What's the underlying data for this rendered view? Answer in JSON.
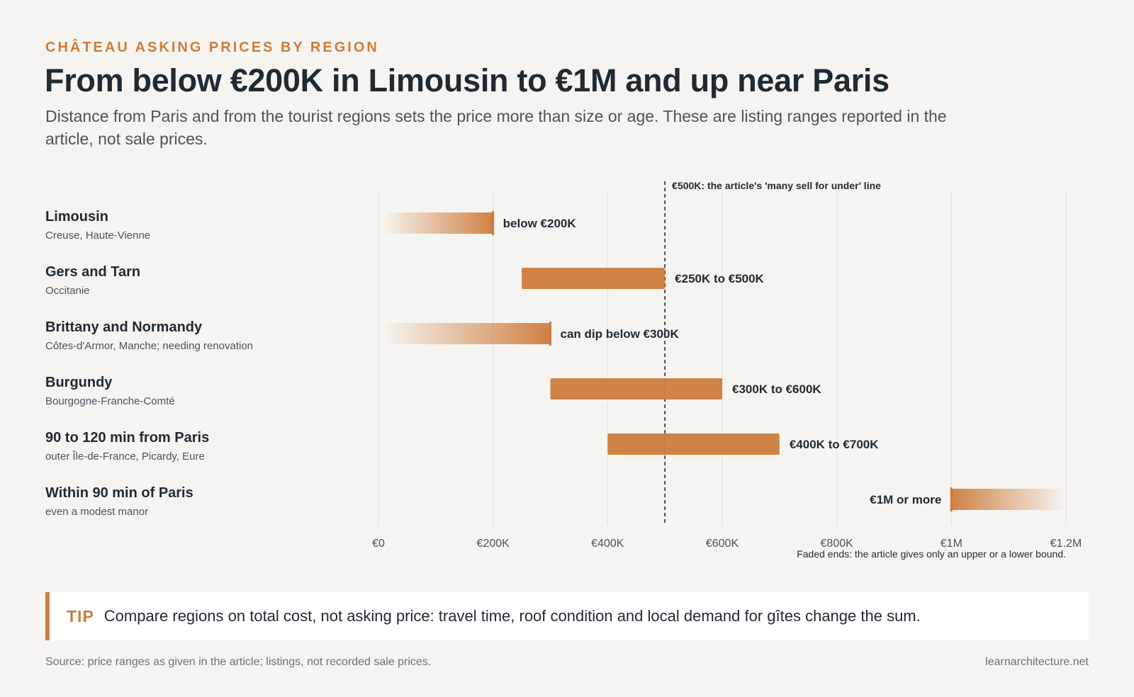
{
  "kicker": "CHÂTEAU ASKING PRICES BY REGION",
  "title": "From below €200K in Limousin to €1M and up near Paris",
  "subtitle": "Distance from Paris and from the tourist regions sets the price more than size or age. These are listing ranges reported in the article, not sale prices.",
  "tip": {
    "label": "TIP",
    "text": "Compare regions on total cost, not asking price: travel time, roof condition and local demand for gîtes change the sum."
  },
  "source": "Source: price ranges as given in the article; listings, not recorded sale prices.",
  "site": "learnarchitecture.net",
  "colors": {
    "bar": "#cd7c3c",
    "grid": "#e2ded8",
    "text": "#1f2a33",
    "muted": "#4a545c"
  },
  "chart_data": {
    "type": "bar",
    "orientation": "horizontal-range",
    "xlim": [
      0,
      1200000
    ],
    "ticks": [
      {
        "value": 0,
        "label": "€0"
      },
      {
        "value": 200000,
        "label": "€200K"
      },
      {
        "value": 400000,
        "label": "€400K"
      },
      {
        "value": 600000,
        "label": "€600K"
      },
      {
        "value": 800000,
        "label": "€800K"
      },
      {
        "value": 1000000,
        "label": "€1M"
      },
      {
        "value": 1200000,
        "label": "€1.2M"
      }
    ],
    "grid": true,
    "reference_line": {
      "value": 500000,
      "label": "€500K: the article's 'many sell for under' line"
    },
    "note": "Faded ends: the article gives only an upper or a lower bound.",
    "rows": [
      {
        "region": "Limousin",
        "detail": "Creuse, Haute-Vienne",
        "low": null,
        "high": 200000,
        "fade": "left",
        "label": "below €200K"
      },
      {
        "region": "Gers and Tarn",
        "detail": "Occitanie",
        "low": 250000,
        "high": 500000,
        "fade": "none",
        "label": "€250K to €500K"
      },
      {
        "region": "Brittany and Normandy",
        "detail": "Côtes-d'Armor, Manche; needing renovation",
        "low": null,
        "high": 300000,
        "fade": "left",
        "label": "can dip below €300K"
      },
      {
        "region": "Burgundy",
        "detail": "Bourgogne-Franche-Comté",
        "low": 300000,
        "high": 600000,
        "fade": "none",
        "label": "€300K to €600K"
      },
      {
        "region": "90 to 120 min from Paris",
        "detail": "outer Île-de-France, Picardy, Eure",
        "low": 400000,
        "high": 700000,
        "fade": "none",
        "label": "€400K to €700K"
      },
      {
        "region": "Within 90 min of Paris",
        "detail": "even a modest manor",
        "low": 1000000,
        "high": null,
        "fade": "right",
        "label": "€1M or more"
      }
    ]
  }
}
